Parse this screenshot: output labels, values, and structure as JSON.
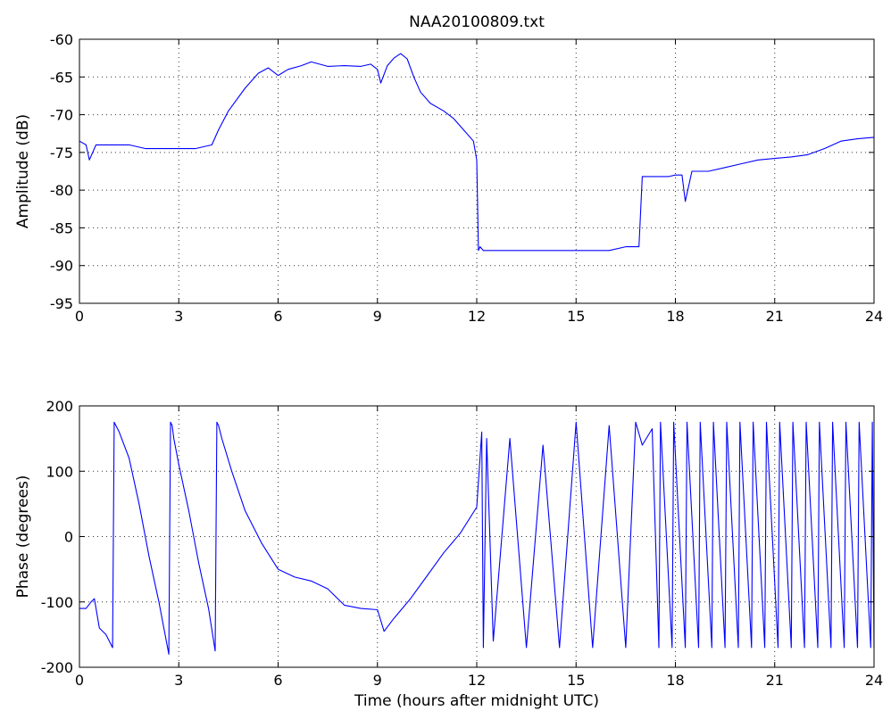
{
  "chart_data": [
    {
      "type": "line",
      "title": "NAA20100809.txt",
      "xlabel": "",
      "ylabel": "Amplitude (dB)",
      "xlim": [
        0,
        24
      ],
      "ylim": [
        -95,
        -60
      ],
      "xticks": [
        0,
        3,
        6,
        9,
        12,
        15,
        18,
        21,
        24
      ],
      "yticks": [
        -95,
        -90,
        -85,
        -80,
        -75,
        -70,
        -65,
        -60
      ],
      "grid": true,
      "color": "#0000ff",
      "series": [
        {
          "x": [
            0,
            0.2,
            0.3,
            0.5,
            1,
            1.5,
            2,
            2.5,
            3,
            3.5,
            4,
            4.2,
            4.5,
            5,
            5.4,
            5.7,
            6,
            6.3,
            6.7,
            7,
            7.5,
            8,
            8.5,
            8.8,
            9,
            9.1,
            9.3,
            9.5,
            9.7,
            9.9,
            10.1,
            10.3,
            10.6,
            11,
            11.3,
            11.6,
            11.9,
            12.0,
            12.05,
            12.1,
            12.2,
            12.5,
            13,
            13.5,
            14,
            14.5,
            15,
            15.5,
            16,
            16.5,
            16.8,
            16.9,
            17.0,
            17.3,
            17.8,
            18.0,
            18.2,
            18.3,
            18.5,
            19,
            19.5,
            20,
            20.5,
            21,
            21.5,
            22,
            22.5,
            23,
            23.5,
            24
          ],
          "y": [
            -73.5,
            -74,
            -76,
            -74,
            -74,
            -74,
            -74.5,
            -74.5,
            -74.5,
            -74.5,
            -74,
            -72,
            -69.5,
            -66.5,
            -64.5,
            -63.8,
            -64.8,
            -64,
            -63.5,
            -63,
            -63.6,
            -63.5,
            -63.6,
            -63.3,
            -64,
            -65.8,
            -63.5,
            -62.5,
            -61.9,
            -62.6,
            -65,
            -67,
            -68.5,
            -69.5,
            -70.5,
            -72,
            -73.5,
            -76,
            -88,
            -87.5,
            -88,
            -88,
            -88,
            -88,
            -88,
            -88,
            -88,
            -88,
            -88,
            -87.5,
            -87.5,
            -87.5,
            -78.2,
            -78.2,
            -78.2,
            -78,
            -78,
            -81.5,
            -77.5,
            -77.5,
            -77,
            -76.5,
            -76,
            -75.8,
            -75.6,
            -75.3,
            -74.5,
            -73.5,
            -73.2,
            -73
          ]
        }
      ]
    },
    {
      "type": "line",
      "title": "",
      "xlabel": "Time (hours after midnight UTC)",
      "ylabel": "Phase (degrees)",
      "xlim": [
        0,
        24
      ],
      "ylim": [
        -200,
        200
      ],
      "xticks": [
        0,
        3,
        6,
        9,
        12,
        15,
        18,
        21,
        24
      ],
      "yticks": [
        -200,
        -100,
        0,
        100,
        200
      ],
      "grid": true,
      "color": "#0000ff",
      "series": [
        {
          "x": [
            0,
            0.2,
            0.35,
            0.45,
            0.6,
            0.8,
            1.0,
            1.05,
            1.1,
            1.2,
            1.5,
            1.8,
            2.1,
            2.4,
            2.7,
            2.75,
            2.8,
            2.85,
            3.0,
            3.3,
            3.6,
            3.9,
            4.1,
            4.15,
            4.2,
            4.3,
            4.6,
            5.0,
            5.5,
            6.0,
            6.5,
            7.0,
            7.5,
            8.0,
            8.5,
            9.0,
            9.2,
            9.5,
            10,
            10.5,
            11,
            11.5,
            12.0,
            12.15,
            12.2,
            12.3,
            12.5,
            13,
            13.5,
            14,
            14.5,
            15,
            15.5,
            16,
            16.5,
            16.8,
            17.0,
            17.3,
            17.5,
            17.55,
            17.9,
            17.95,
            18.3,
            18.35,
            18.7,
            18.75,
            19.1,
            19.15,
            19.5,
            19.55,
            19.9,
            19.95,
            20.3,
            20.35,
            20.7,
            20.75,
            21.1,
            21.15,
            21.5,
            21.55,
            21.9,
            21.95,
            22.3,
            22.35,
            22.7,
            22.75,
            23.1,
            23.15,
            23.5,
            23.55,
            23.9,
            23.95,
            24
          ],
          "y": [
            -110,
            -110,
            -100,
            -95,
            -140,
            -150,
            -170,
            175,
            170,
            160,
            120,
            50,
            -30,
            -100,
            -180,
            175,
            170,
            150,
            110,
            40,
            -40,
            -110,
            -175,
            175,
            170,
            150,
            100,
            40,
            -10,
            -50,
            -62,
            -68,
            -80,
            -105,
            -110,
            -112,
            -145,
            -125,
            -95,
            -60,
            -25,
            5,
            45,
            160,
            -170,
            150,
            -160,
            150,
            -170,
            140,
            -170,
            175,
            -170,
            170,
            -170,
            175,
            140,
            165,
            -170,
            175,
            -170,
            175,
            -170,
            175,
            -170,
            175,
            -170,
            175,
            -170,
            175,
            -170,
            175,
            -170,
            175,
            -170,
            175,
            -170,
            175,
            -170,
            175,
            -170,
            175,
            -170,
            175,
            -170,
            175,
            -170,
            175,
            -170,
            175,
            -170,
            175,
            -170
          ]
        }
      ]
    }
  ]
}
